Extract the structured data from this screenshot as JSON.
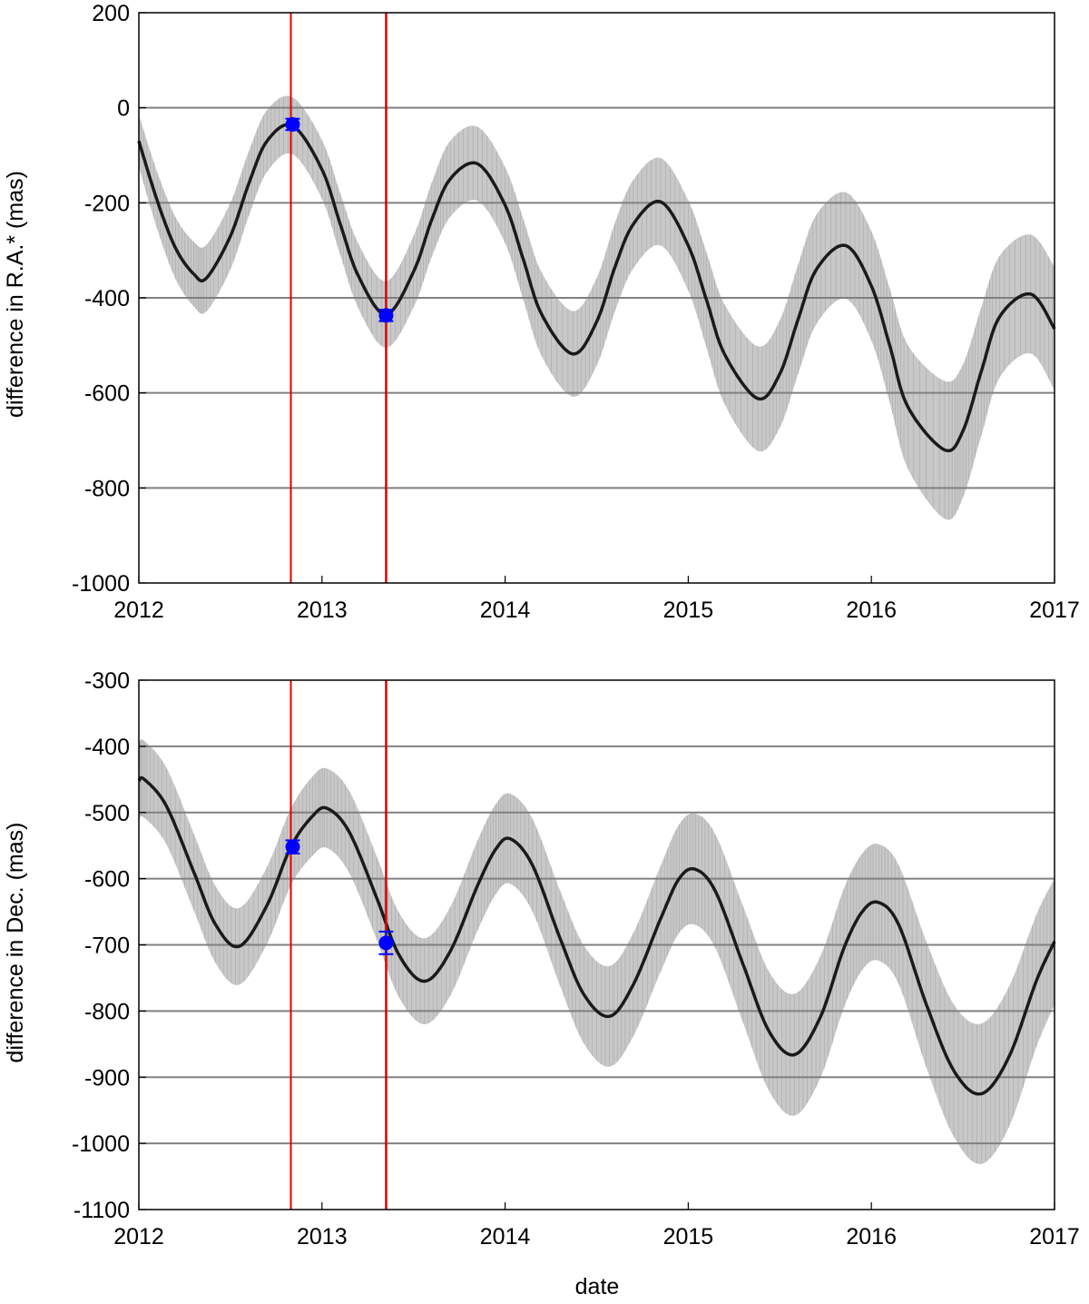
{
  "chart_data": [
    {
      "type": "line",
      "title": "",
      "xlabel": "",
      "ylabel": "difference in R.A.* (mas)",
      "xlim": [
        2012,
        2017
      ],
      "ylim": [
        -1000,
        200
      ],
      "x_ticks": [
        "2012",
        "2013",
        "2014",
        "2015",
        "2016",
        "2017"
      ],
      "y_ticks": [
        "200",
        "0",
        "-200",
        "-400",
        "-600",
        "-800",
        "-1000"
      ],
      "grid": "horizontal",
      "vertical_markers": [
        2012.83,
        2013.35
      ],
      "model_curve": {
        "x": [
          2012.0,
          2012.1,
          2012.2,
          2012.3,
          2012.37,
          2012.5,
          2012.6,
          2012.7,
          2012.84,
          2013.0,
          2013.1,
          2013.2,
          2013.35,
          2013.5,
          2013.6,
          2013.7,
          2013.85,
          2014.0,
          2014.1,
          2014.2,
          2014.37,
          2014.5,
          2014.6,
          2014.7,
          2014.85,
          2015.0,
          2015.1,
          2015.2,
          2015.38,
          2015.5,
          2015.6,
          2015.7,
          2015.86,
          2016.0,
          2016.1,
          2016.2,
          2016.4,
          2016.5,
          2016.6,
          2016.7,
          2016.87,
          2017.0
        ],
        "y": [
          -70,
          -195,
          -295,
          -350,
          -358,
          -270,
          -160,
          -70,
          -38,
          -130,
          -245,
          -355,
          -435,
          -345,
          -235,
          -150,
          -118,
          -205,
          -320,
          -435,
          -518,
          -450,
          -335,
          -245,
          -198,
          -290,
          -405,
          -520,
          -612,
          -560,
          -445,
          -340,
          -290,
          -375,
          -500,
          -630,
          -720,
          -680,
          -555,
          -440,
          -392,
          -465
        ],
        "band_halfwidth": [
          55,
          60,
          65,
          68,
          70,
          70,
          68,
          65,
          60,
          62,
          65,
          68,
          70,
          75,
          78,
          80,
          78,
          80,
          85,
          88,
          90,
          92,
          93,
          93,
          92,
          95,
          100,
          105,
          110,
          113,
          115,
          115,
          112,
          115,
          120,
          130,
          145,
          140,
          135,
          128,
          125,
          130
        ]
      },
      "observations": [
        {
          "x": 2012.84,
          "y": -35,
          "err": 12
        },
        {
          "x": 2013.35,
          "y": -437,
          "err": 12
        }
      ],
      "colors": {
        "curve": "#1a1a1a",
        "band": "#c8c8c8",
        "markers": "#0000ff",
        "vertical_lines": "#e00000",
        "grid": "#808080"
      }
    },
    {
      "type": "line",
      "title": "",
      "xlabel": "date",
      "ylabel": "difference in Dec. (mas)",
      "xlim": [
        2012,
        2017
      ],
      "ylim": [
        -1100,
        -300
      ],
      "x_ticks": [
        "2012",
        "2013",
        "2014",
        "2015",
        "2016",
        "2017"
      ],
      "y_ticks": [
        "-300",
        "-400",
        "-500",
        "-600",
        "-700",
        "-800",
        "-900",
        "-1000",
        "-1100"
      ],
      "grid": "horizontal",
      "vertical_markers": [
        2012.83,
        2013.35
      ],
      "model_curve": {
        "x": [
          2012.0,
          2012.03,
          2012.15,
          2012.3,
          2012.42,
          2012.55,
          2012.7,
          2012.83,
          2012.95,
          2013.03,
          2013.15,
          2013.3,
          2013.42,
          2013.56,
          2013.7,
          2013.85,
          2013.95,
          2014.03,
          2014.15,
          2014.3,
          2014.43,
          2014.57,
          2014.7,
          2014.85,
          2014.95,
          2015.04,
          2015.15,
          2015.3,
          2015.44,
          2015.58,
          2015.72,
          2015.85,
          2015.95,
          2016.04,
          2016.15,
          2016.3,
          2016.45,
          2016.6,
          2016.75,
          2016.9,
          2017.0
        ],
        "y": [
          -452,
          -450,
          -490,
          -590,
          -670,
          -702,
          -640,
          -552,
          -505,
          -494,
          -530,
          -630,
          -715,
          -755,
          -710,
          -610,
          -555,
          -540,
          -580,
          -690,
          -775,
          -808,
          -760,
          -660,
          -600,
          -586,
          -620,
          -730,
          -830,
          -866,
          -810,
          -705,
          -650,
          -636,
          -670,
          -790,
          -890,
          -925,
          -870,
          -755,
          -695
        ],
        "band_halfwidth": [
          58,
          58,
          58,
          58,
          58,
          58,
          58,
          58,
          60,
          60,
          62,
          63,
          64,
          65,
          67,
          68,
          68,
          68,
          70,
          72,
          74,
          76,
          78,
          80,
          82,
          84,
          86,
          88,
          90,
          92,
          92,
          90,
          88,
          88,
          90,
          95,
          100,
          106,
          106,
          100,
          95
        ]
      },
      "observations": [
        {
          "x": 2012.84,
          "y": -552,
          "err": 10
        },
        {
          "x": 2013.35,
          "y": -697,
          "err": 17
        }
      ],
      "colors": {
        "curve": "#1a1a1a",
        "band": "#c8c8c8",
        "markers": "#0000ff",
        "vertical_lines": "#e00000",
        "grid": "#808080"
      }
    }
  ]
}
